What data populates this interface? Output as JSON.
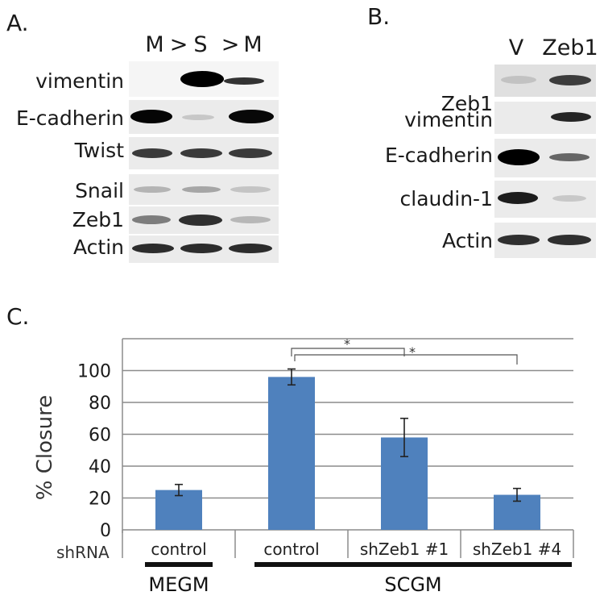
{
  "panel_a": {
    "letter": "A.",
    "lanes": [
      "M",
      ">",
      "S",
      ">",
      "M"
    ],
    "labels": [
      "vimentin",
      "E-cadherin",
      "Twist",
      "Snail",
      "Zeb1",
      "Actin"
    ]
  },
  "panel_b": {
    "letter": "B.",
    "lanes": [
      "V",
      "Zeb1"
    ],
    "labels": [
      "Zeb1",
      "vimentin",
      "E-cadherin",
      "claudin-1",
      "Actin"
    ]
  },
  "panel_c": {
    "letter": "C.",
    "shrna_label": "shRNA",
    "medium_labels": [
      "MEGM",
      "SCGM"
    ],
    "significance_marks": [
      "*",
      "*"
    ]
  },
  "chart_data": {
    "type": "bar",
    "categories": [
      "control",
      "control",
      "shZeb1 #1",
      "shZeb1 #4"
    ],
    "values": [
      25,
      96,
      58,
      22
    ],
    "errors": [
      3.5,
      5,
      12,
      4
    ],
    "ylabel": "% Closure",
    "xlabel": "",
    "yticks": [
      "0",
      "20",
      "40",
      "60",
      "80",
      "100"
    ],
    "ylim": [
      0,
      120
    ],
    "grid": true,
    "bar_color": "#4f81bd"
  }
}
